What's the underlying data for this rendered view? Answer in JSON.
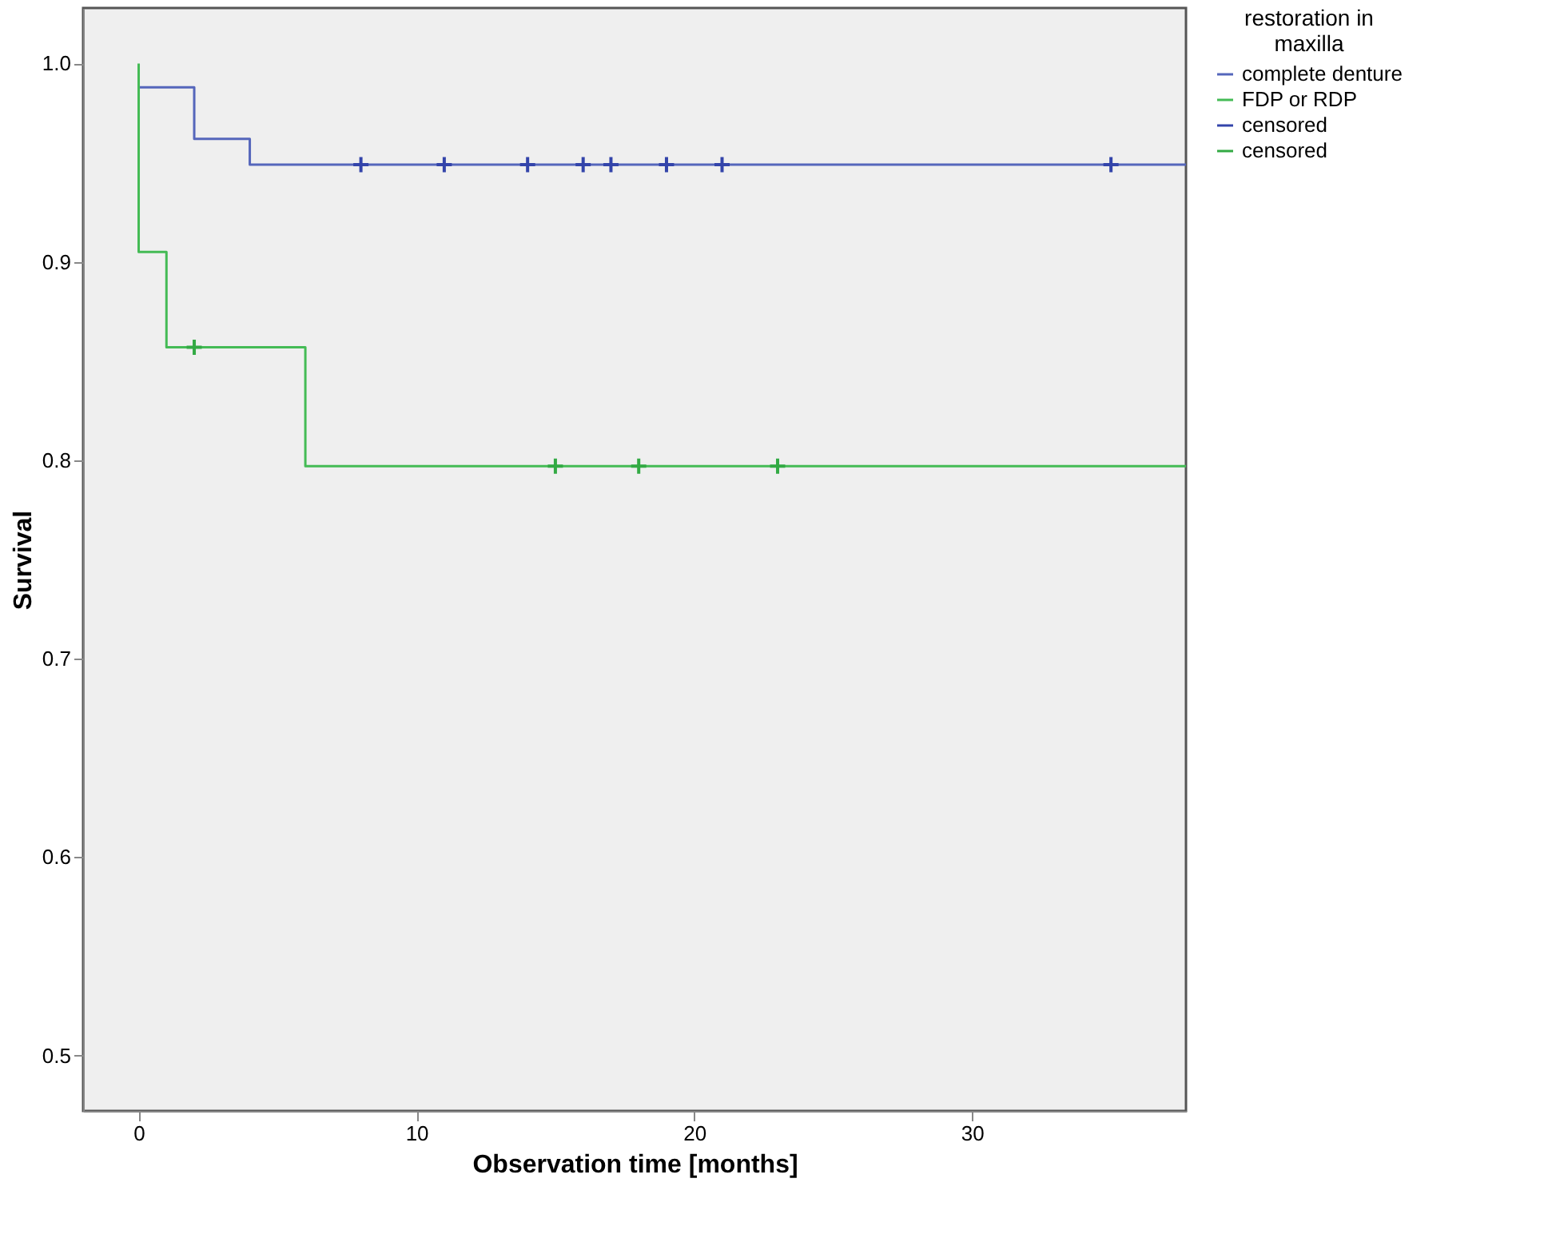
{
  "chart_data": {
    "type": "step",
    "xlabel": "Observation time [months]",
    "ylabel": "Survival",
    "legend_title": "restoration in maxilla",
    "legend": "top right",
    "grid": false,
    "xlim": [
      -2,
      37.7
    ],
    "xticks": [
      0,
      10,
      20,
      30
    ],
    "ylim": [
      0.472,
      1.028
    ],
    "yticks": [
      0.5,
      0.6,
      0.7,
      0.8,
      0.9,
      {
        "value": 1,
        "label": "1.0"
      }
    ],
    "series": [
      {
        "name": "complete denture",
        "color": "#5566bb",
        "line_style": "solid",
        "x": [
          0,
          2,
          4,
          37.7
        ],
        "values": [
          0.988,
          0.962,
          0.949,
          0.949
        ]
      },
      {
        "name": "FDP or RDP",
        "color": "#44bb55",
        "line_style": "solid",
        "x": [
          0,
          0,
          1,
          6,
          37.7
        ],
        "values": [
          1.0,
          0.905,
          0.857,
          0.797,
          0.797
        ]
      },
      {
        "name": "censored",
        "color": "#3344aa",
        "type": "scatter",
        "marker": "cross",
        "x": [
          8,
          11,
          14,
          16,
          17,
          19,
          21,
          35
        ],
        "values": [
          0.949,
          0.949,
          0.949,
          0.949,
          0.949,
          0.949,
          0.949,
          0.949
        ]
      },
      {
        "name": "censored",
        "color": "#33aa44",
        "type": "scatter",
        "marker": "cross",
        "x": [
          2,
          15,
          18,
          23
        ],
        "values": [
          0.857,
          0.797,
          0.797,
          0.797
        ]
      }
    ]
  }
}
